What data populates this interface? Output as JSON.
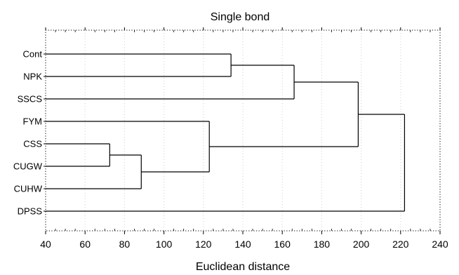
{
  "chart_data": {
    "type": "dendrogram",
    "title": "Single bond",
    "xlabel": "Euclidean distance",
    "ylabel": "",
    "xlim": [
      40,
      240
    ],
    "xticks": [
      40,
      60,
      80,
      100,
      120,
      140,
      160,
      180,
      200,
      220,
      240
    ],
    "grid": true,
    "leaves": [
      "Cont",
      "NPK",
      "SSCS",
      "FYM",
      "CSS",
      "CUGW",
      "CUHW",
      "DPSS"
    ],
    "merges": [
      {
        "a": "CSS",
        "b": "CUGW",
        "distance": 72.5
      },
      {
        "a": "CSS+CUGW",
        "b": "CUHW",
        "distance": 88.5
      },
      {
        "a": "FYM",
        "b": "CSS+CUGW+CUHW",
        "distance": 123
      },
      {
        "a": "Cont",
        "b": "NPK",
        "distance": 134
      },
      {
        "a": "Cont+NPK",
        "b": "SSCS",
        "distance": 166
      },
      {
        "a": "Cont+NPK+SSCS",
        "b": "FYM+CSS+CUGW+CUHW",
        "distance": 198.5
      },
      {
        "a": "Cont+NPK+SSCS+FYM+CSS+CUGW+CUHW",
        "b": "DPSS",
        "distance": 222
      }
    ]
  }
}
